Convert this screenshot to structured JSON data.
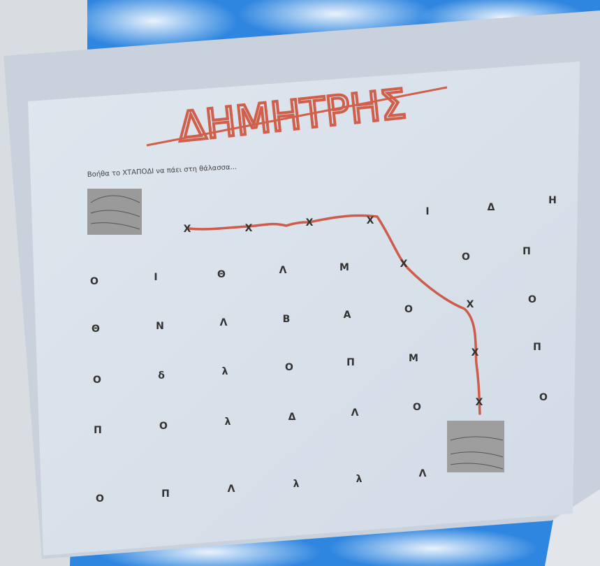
{
  "name": "ΔΗΜΗΤΡΗΣ",
  "instruction": "Βοήθα το ΧΤΑΠΟΔΙ να πάει στη θάλασσα...",
  "grid": {
    "rows": [
      [
        "Χ",
        "Χ",
        "Χ",
        "Χ",
        "Ι",
        "Δ",
        "Η"
      ],
      [
        "Ο",
        "Ι",
        "Θ",
        "Λ",
        "Μ",
        "Χ",
        "Ο",
        "Π"
      ],
      [
        "Θ",
        "Ν",
        "Λ",
        "Β",
        "Α",
        "Ο",
        "Χ",
        "Ο"
      ],
      [
        "Ο",
        "δ",
        "λ",
        "Ο",
        "Π",
        "Μ",
        "Χ",
        "Π"
      ],
      [
        "Π",
        "Ο",
        "λ",
        "Δ",
        "Λ",
        "Ο",
        "Χ",
        "Ο"
      ],
      [
        "Ο",
        "Π",
        "Λ",
        "λ",
        "λ",
        "Λ"
      ]
    ]
  }
}
